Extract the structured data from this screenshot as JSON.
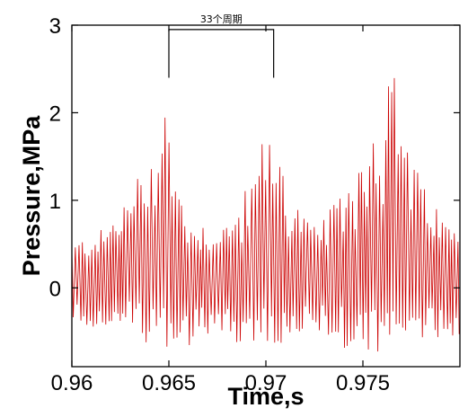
{
  "chart_data": {
    "type": "line",
    "xlabel": "Time,s",
    "ylabel": "Pressure,MPa",
    "xlim": [
      0.96,
      0.98
    ],
    "ylim": [
      -0.9,
      3.0
    ],
    "x_ticks": [
      0.96,
      0.965,
      0.97,
      0.975
    ],
    "x_tick_labels": [
      "0.96",
      "0.965",
      "0.97",
      "0.975"
    ],
    "y_ticks": [
      0,
      1,
      2,
      3
    ],
    "y_tick_labels": [
      "0",
      "1",
      "2",
      "3"
    ],
    "grid": false,
    "line_color": "#cc0000",
    "annotation": {
      "text": "33个周期",
      "x_start": 0.965,
      "x_end": 0.9704,
      "y_top": 2.95,
      "y_bottom": 2.4
    },
    "series": [
      {
        "x_start": 0.96,
        "x_end": 0.98,
        "oscillation_period": 0.0001636,
        "peak_envelope": [
          {
            "x": 0.96,
            "y": 0.5
          },
          {
            "x": 0.9618,
            "y": 0.7
          },
          {
            "x": 0.963,
            "y": 1.1
          },
          {
            "x": 0.964,
            "y": 1.6
          },
          {
            "x": 0.9646,
            "y": 2.1
          },
          {
            "x": 0.9649,
            "y": 2.3
          },
          {
            "x": 0.9653,
            "y": 1.3
          },
          {
            "x": 0.9662,
            "y": 0.75
          },
          {
            "x": 0.9682,
            "y": 0.75
          },
          {
            "x": 0.9695,
            "y": 1.4
          },
          {
            "x": 0.9702,
            "y": 2.1
          },
          {
            "x": 0.9706,
            "y": 1.7
          },
          {
            "x": 0.9712,
            "y": 1.1
          },
          {
            "x": 0.9725,
            "y": 0.7
          },
          {
            "x": 0.9737,
            "y": 1.0
          },
          {
            "x": 0.9745,
            "y": 1.4
          },
          {
            "x": 0.9755,
            "y": 1.9
          },
          {
            "x": 0.9763,
            "y": 2.4
          },
          {
            "x": 0.9767,
            "y": 2.5
          },
          {
            "x": 0.9772,
            "y": 1.8
          },
          {
            "x": 0.978,
            "y": 1.2
          },
          {
            "x": 0.9792,
            "y": 0.8
          },
          {
            "x": 0.98,
            "y": 0.6
          }
        ],
        "trough_envelope": [
          {
            "x": 0.96,
            "y": -0.45
          },
          {
            "x": 0.963,
            "y": -0.5
          },
          {
            "x": 0.965,
            "y": -0.8
          },
          {
            "x": 0.967,
            "y": -0.55
          },
          {
            "x": 0.97,
            "y": -0.75
          },
          {
            "x": 0.973,
            "y": -0.6
          },
          {
            "x": 0.976,
            "y": -0.85
          },
          {
            "x": 0.978,
            "y": -0.6
          },
          {
            "x": 0.98,
            "y": -0.55
          }
        ]
      }
    ]
  }
}
